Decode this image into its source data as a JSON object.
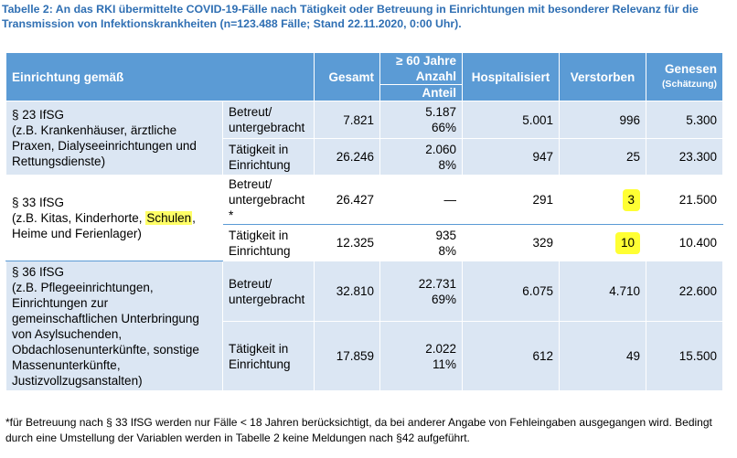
{
  "caption": {
    "line1": "Tabelle 2: An das RKI übermittelte COVID-19-Fälle nach Tätigkeit oder Betreuung in Einrichtungen mit besonderer Relevanz für die",
    "line2": "Transmission von Infektionskrankheiten (n=123.488 Fälle; Stand 22.11.2020, 0:00 Uhr)."
  },
  "header": {
    "einrichtung": "Einrichtung gemäß",
    "gesamt": "Gesamt",
    "ab60_line1": "≥ 60 Jahre",
    "ab60_anzahl": "Anzahl",
    "ab60_anteil": "Anteil",
    "hospitalisiert": "Hospitalisiert",
    "verstorben": "Verstorben",
    "genesen": "Genesen",
    "genesen_sub": "(Schätzung)"
  },
  "groups": [
    {
      "cat_lines": [
        "§ 23 IfSG",
        "(z.B. Krankenhäuser, ärztliche",
        "Praxen, Dialyseeinrichtungen und",
        "Rettungsdienste)"
      ],
      "rows": [
        {
          "type_lines": [
            "Betreut/",
            "untergebracht"
          ],
          "gesamt": "7.821",
          "anzahl": "5.187",
          "anteil": "66%",
          "hosp": "5.001",
          "verst": "996",
          "genesen": "5.300"
        },
        {
          "type_lines": [
            "Tätigkeit in",
            "Einrichtung"
          ],
          "gesamt": "26.246",
          "anzahl": "2.060",
          "anteil": "8%",
          "hosp": "947",
          "verst": "25",
          "genesen": "23.300"
        }
      ]
    },
    {
      "cat_lines": [
        "§ 33 IfSG",
        "(z.B. Kitas, Kinderhorte, ",
        "Schulen",
        ",",
        "Heime und Ferienlager)"
      ],
      "rows": [
        {
          "type_lines": [
            "Betreut/",
            "untergebracht",
            "*"
          ],
          "gesamt": "26.427",
          "anzahl": "—",
          "anteil": "",
          "hosp": "291",
          "verst": "3",
          "genesen": "21.500"
        },
        {
          "type_lines": [
            "Tätigkeit in",
            "Einrichtung"
          ],
          "gesamt": "12.325",
          "anzahl": "935",
          "anteil": "8%",
          "hosp": "329",
          "verst": "10",
          "genesen": "10.400"
        }
      ]
    },
    {
      "cat_lines": [
        "§ 36 IfSG",
        "(z.B. Pflegeeinrichtungen,",
        "Einrichtungen zur",
        "gemeinschaftlichen Unterbringung",
        "von Asylsuchenden,",
        "Obdachlosenunterkünfte, sonstige",
        "Massenunterkünfte,",
        "Justizvollzugsanstalten)"
      ],
      "rows": [
        {
          "type_lines": [
            "Betreut/",
            "untergebracht"
          ],
          "gesamt": "32.810",
          "anzahl": "22.731",
          "anteil": "69%",
          "hosp": "6.075",
          "verst": "4.710",
          "genesen": "22.600"
        },
        {
          "type_lines": [
            "Tätigkeit in",
            "Einrichtung"
          ],
          "gesamt": "17.859",
          "anzahl": "2.022",
          "anteil": "11%",
          "hosp": "612",
          "verst": "49",
          "genesen": "15.500"
        }
      ]
    }
  ],
  "footnote": {
    "line1": "*für Betreuung nach § 33 IfSG werden nur Fälle < 18 Jahren berücksichtigt, da bei anderer Angabe von Fehleingaben ausgegangen wird. Bedingt",
    "line2": "durch eine Umstellung der Variablen werden in Tabelle 2 keine Meldungen nach §42 aufgeführt."
  },
  "colors": {
    "caption": "#2f6fb3",
    "header_bg": "#5b9bd5",
    "row_shade": "#dbe6f3",
    "highlight": "#ffff33"
  }
}
